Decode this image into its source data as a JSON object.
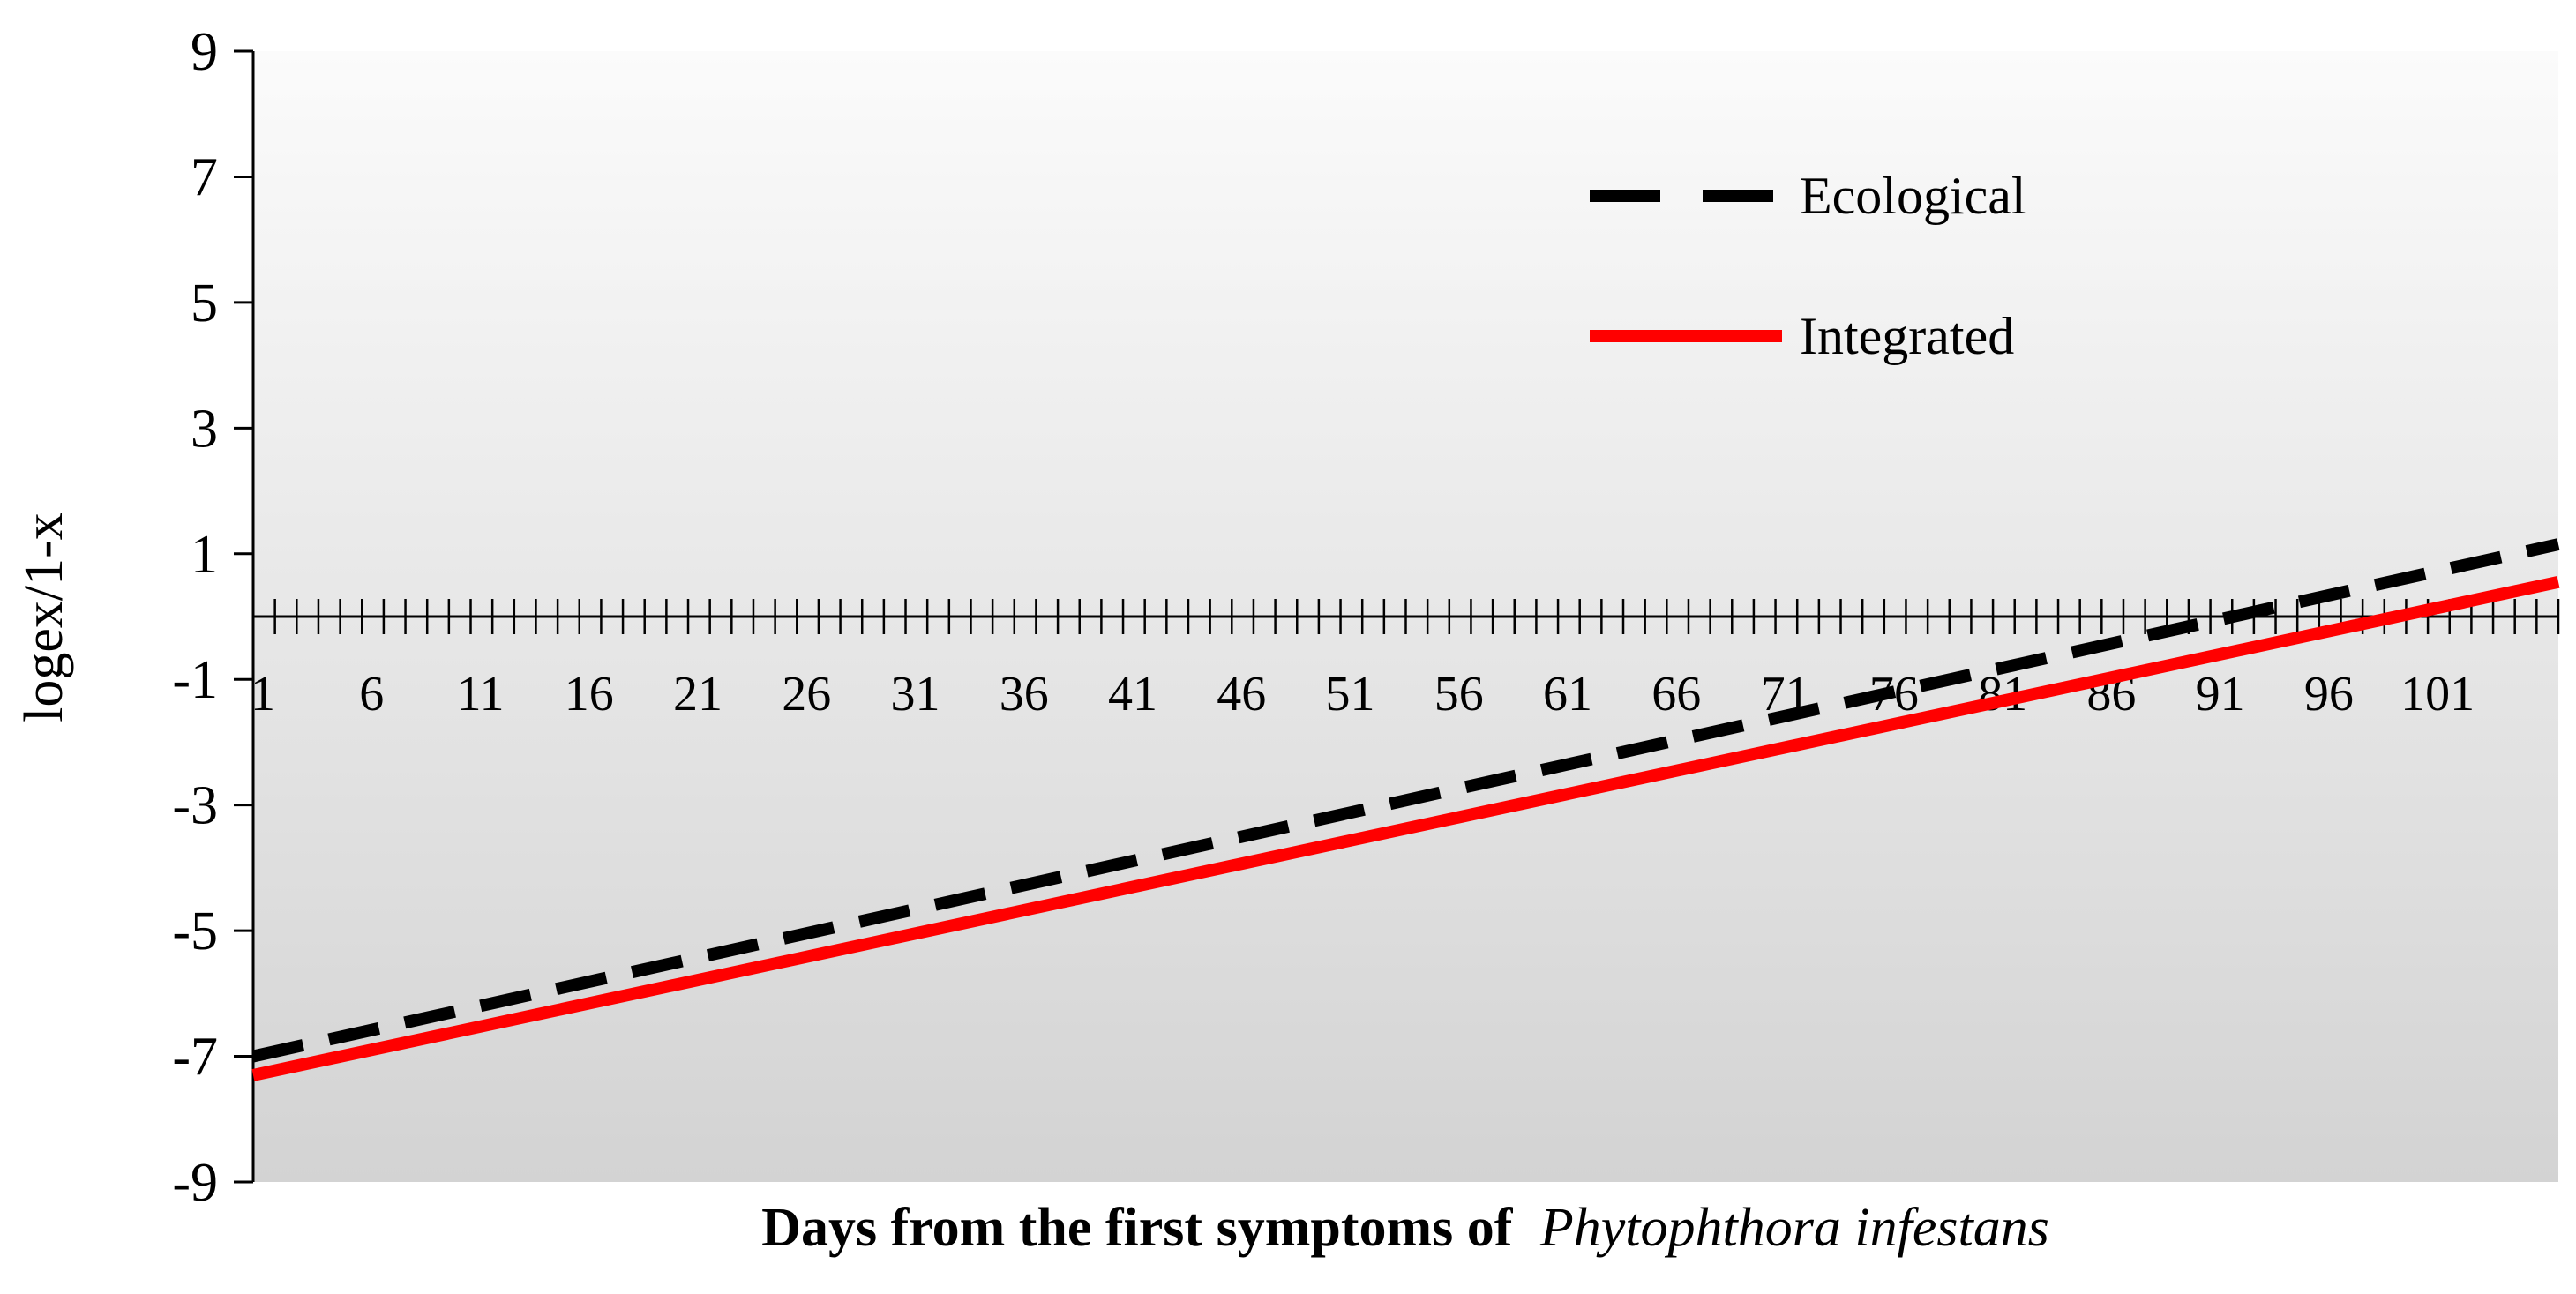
{
  "chart_data": {
    "type": "line",
    "xlabel": "Days from the first symptoms of",
    "xlabel_italic": "Phytophthora infestans",
    "ylabel": "logex/1-x",
    "ylim": [
      -9,
      9
    ],
    "yticks": [
      "9",
      "7",
      "5",
      "3",
      "1",
      "-1",
      "-3",
      "-5",
      "-7",
      "-9"
    ],
    "xlim": [
      1,
      107
    ],
    "xticks": [
      "1",
      "6",
      "11",
      "16",
      "21",
      "26",
      "31",
      "36",
      "41",
      "46",
      "51",
      "56",
      "61",
      "66",
      "71",
      "76",
      "81",
      "86",
      "91",
      "96",
      "101"
    ],
    "x_axis_crosses_y": 0,
    "legend_position": "top-right",
    "background": "gradient light gray",
    "series": [
      {
        "name": "Ecological",
        "style": "dashed",
        "color": "#000000",
        "x": [
          1,
          107
        ],
        "y": [
          -7.0,
          1.15
        ]
      },
      {
        "name": "Integrated",
        "style": "solid",
        "color": "#ff0000",
        "x": [
          1,
          107
        ],
        "y": [
          -7.3,
          0.55
        ]
      }
    ]
  }
}
